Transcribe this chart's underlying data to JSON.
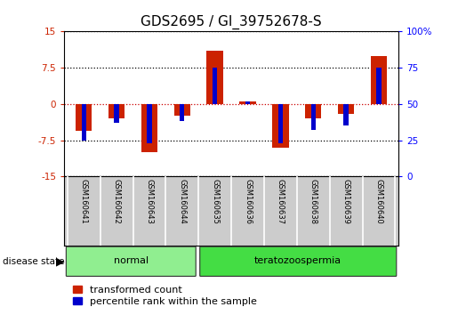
{
  "title": "GDS2695 / GI_39752678-S",
  "samples": [
    "GSM160641",
    "GSM160642",
    "GSM160643",
    "GSM160644",
    "GSM160635",
    "GSM160636",
    "GSM160637",
    "GSM160638",
    "GSM160639",
    "GSM160640"
  ],
  "red_values": [
    -5.5,
    -3.0,
    -10.0,
    -2.5,
    11.0,
    0.5,
    -9.0,
    -3.0,
    -2.0,
    10.0
  ],
  "blue_percentiles": [
    25,
    37,
    23,
    38,
    75,
    52,
    23,
    32,
    35,
    75
  ],
  "groups": [
    {
      "label": "normal",
      "start": 0,
      "end": 4,
      "color": "#90ee90"
    },
    {
      "label": "teratozoospermia",
      "start": 4,
      "end": 10,
      "color": "#44dd44"
    }
  ],
  "ylim_left": [
    -15,
    15
  ],
  "yticks_left": [
    -15,
    -7.5,
    0,
    7.5,
    15
  ],
  "ylim_right": [
    0,
    100
  ],
  "yticks_right": [
    0,
    25,
    50,
    75,
    100
  ],
  "red_color": "#cc2200",
  "blue_color": "#0000cc",
  "bar_width": 0.5,
  "zero_line_color": "#cc0000",
  "background_color": "#ffffff",
  "label_bg_color": "#cccccc",
  "title_fontsize": 11,
  "tick_fontsize": 7.5,
  "sample_fontsize": 6,
  "group_fontsize": 8,
  "legend_fontsize": 8,
  "disease_state_fontsize": 7.5
}
